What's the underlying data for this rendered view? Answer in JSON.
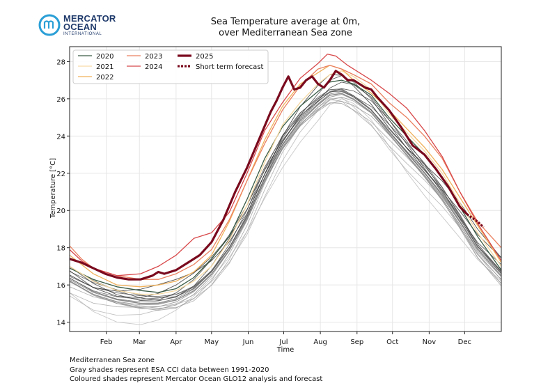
{
  "logo": {
    "line1": "MERCATOR",
    "line2": "OCEAN",
    "sub": "INTERNATIONAL"
  },
  "footer": [
    "Mediterranean Sea zone",
    "Gray shades represent ESA CCI data between 1991-2020",
    "Coloured shades represent Mercator Ocean GLO12 analysis and forecast"
  ],
  "chart_data": {
    "type": "line",
    "title": [
      "Sea Temperature average at 0m,",
      "over Mediterranean Sea zone"
    ],
    "xlabel": "Time",
    "ylabel": "Temperature [°C]",
    "xlim": [
      0,
      365
    ],
    "ylim": [
      13.5,
      28.8
    ],
    "yticks": [
      14,
      16,
      18,
      20,
      22,
      24,
      26,
      28
    ],
    "xtick_days": [
      31,
      59,
      90,
      120,
      151,
      181,
      212,
      243,
      273,
      304,
      334
    ],
    "xtick_labels": [
      "Feb",
      "Mar",
      "Apr",
      "May",
      "Jun",
      "Jul",
      "Aug",
      "Sep",
      "Oct",
      "Nov",
      "Dec"
    ],
    "grid": true,
    "legend_position": "top-left",
    "colors": {
      "2020": "#3a5c45",
      "2021": "#f6d9a3",
      "2022": "#f0b15a",
      "2023": "#ea8060",
      "2024": "#d8484a",
      "2025": "#7a0a1e",
      "gray": "#888888"
    },
    "series": [
      {
        "name": "2020",
        "x": [
          0,
          20,
          40,
          60,
          75,
          90,
          105,
          120,
          135,
          150,
          165,
          180,
          195,
          210,
          220,
          230,
          240,
          255,
          270,
          285,
          300,
          315,
          330,
          345,
          365
        ],
        "y": [
          16.9,
          16.3,
          15.9,
          15.7,
          15.6,
          15.8,
          16.4,
          17.4,
          18.6,
          20.6,
          22.8,
          24.5,
          25.6,
          26.4,
          26.9,
          27.0,
          26.8,
          26.2,
          25.0,
          24.0,
          23.0,
          21.8,
          20.2,
          18.6,
          16.8
        ]
      },
      {
        "name": "2021",
        "x": [
          0,
          20,
          40,
          60,
          75,
          90,
          105,
          120,
          135,
          150,
          165,
          180,
          195,
          210,
          220,
          230,
          240,
          255,
          270,
          285,
          300,
          315,
          330,
          345,
          365
        ],
        "y": [
          17.0,
          16.2,
          15.7,
          15.5,
          15.5,
          15.7,
          16.2,
          17.0,
          18.4,
          20.3,
          22.6,
          24.6,
          25.8,
          26.8,
          27.3,
          27.5,
          27.2,
          26.5,
          25.2,
          24.2,
          23.2,
          22.0,
          20.4,
          18.8,
          17.0
        ]
      },
      {
        "name": "2022",
        "x": [
          0,
          20,
          40,
          60,
          75,
          90,
          105,
          120,
          135,
          150,
          165,
          180,
          195,
          210,
          220,
          230,
          240,
          255,
          270,
          285,
          300,
          315,
          330,
          345,
          365
        ],
        "y": [
          17.6,
          16.6,
          16.0,
          15.9,
          16.0,
          16.2,
          16.7,
          17.6,
          19.4,
          21.6,
          23.8,
          25.6,
          26.8,
          27.4,
          27.8,
          27.6,
          27.0,
          26.3,
          25.4,
          24.4,
          23.4,
          22.2,
          20.7,
          19.2,
          17.2
        ]
      },
      {
        "name": "2023",
        "x": [
          0,
          10,
          20,
          40,
          60,
          75,
          90,
          105,
          120,
          135,
          150,
          165,
          180,
          195,
          210,
          220,
          230,
          240,
          255,
          270,
          285,
          300,
          315,
          330,
          345,
          365
        ],
        "y": [
          18.1,
          17.4,
          16.9,
          16.5,
          16.3,
          16.3,
          16.6,
          17.1,
          17.9,
          19.5,
          21.6,
          23.6,
          25.4,
          26.7,
          27.6,
          27.8,
          27.6,
          27.3,
          26.8,
          25.8,
          25.0,
          24.0,
          22.8,
          21.0,
          19.4,
          18.0
        ]
      },
      {
        "name": "2024",
        "x": [
          0,
          10,
          20,
          40,
          60,
          75,
          90,
          100,
          105,
          120,
          135,
          150,
          165,
          180,
          195,
          210,
          218,
          225,
          235,
          240,
          255,
          270,
          285,
          300,
          315,
          330,
          345,
          365
        ],
        "y": [
          17.9,
          17.3,
          16.9,
          16.5,
          16.6,
          17.0,
          17.6,
          18.2,
          18.5,
          18.8,
          19.9,
          22.0,
          24.3,
          25.8,
          27.1,
          27.9,
          28.4,
          28.3,
          27.8,
          27.6,
          27.0,
          26.3,
          25.5,
          24.3,
          22.9,
          21.0,
          19.3,
          17.3
        ]
      },
      {
        "name": "2025",
        "x": [
          0,
          10,
          20,
          30,
          40,
          50,
          60,
          70,
          75,
          80,
          90,
          100,
          110,
          120,
          130,
          140,
          150,
          160,
          170,
          175,
          180,
          185,
          190,
          195,
          200,
          205,
          210,
          215,
          220,
          225,
          230,
          235,
          240,
          245,
          250,
          255,
          260,
          270,
          280,
          290,
          300,
          310,
          320,
          330,
          336
        ],
        "y": [
          17.4,
          17.2,
          16.9,
          16.6,
          16.4,
          16.3,
          16.3,
          16.5,
          16.7,
          16.6,
          16.8,
          17.2,
          17.6,
          18.3,
          19.5,
          21.0,
          22.3,
          23.8,
          25.3,
          25.9,
          26.6,
          27.2,
          26.5,
          26.6,
          27.0,
          27.2,
          26.8,
          26.6,
          27.0,
          27.5,
          27.3,
          27.0,
          27.0,
          26.8,
          26.6,
          26.5,
          26.1,
          25.4,
          24.5,
          23.5,
          23.0,
          22.2,
          21.3,
          20.2,
          19.8
        ]
      },
      {
        "name": "Short term forecast",
        "x": [
          336,
          345,
          350
        ],
        "y": [
          19.8,
          19.4,
          19.1
        ]
      }
    ],
    "gray_band": {
      "x": [
        0,
        20,
        40,
        60,
        75,
        90,
        105,
        120,
        135,
        150,
        165,
        180,
        195,
        210,
        220,
        230,
        240,
        255,
        270,
        285,
        300,
        315,
        330,
        345,
        365
      ],
      "y": [
        16.3,
        15.6,
        15.2,
        15.0,
        15.0,
        15.2,
        15.7,
        16.6,
        17.9,
        19.6,
        21.7,
        23.5,
        24.8,
        25.7,
        26.2,
        26.3,
        26.0,
        25.3,
        24.2,
        23.1,
        22.0,
        20.8,
        19.4,
        17.9,
        16.5
      ]
    }
  }
}
